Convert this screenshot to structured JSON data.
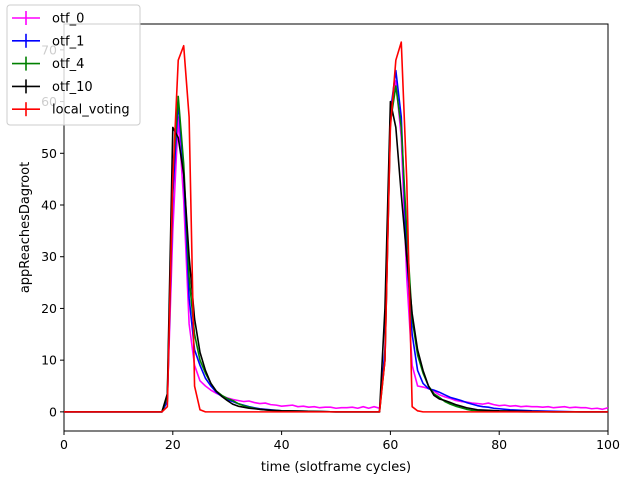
{
  "chart_data": {
    "type": "line",
    "xlabel": "time (slotframe cycles)",
    "ylabel": "appReachesDagroot",
    "xlim": [
      0,
      100
    ],
    "ylim": [
      -3.7,
      75
    ],
    "xticks": [
      0,
      20,
      40,
      60,
      80,
      100
    ],
    "yticks": [
      0,
      10,
      20,
      30,
      40,
      50,
      60,
      70
    ],
    "legend_position": "top-left",
    "series": [
      {
        "name": "otf_0",
        "color": "#ff00ff",
        "points": [
          [
            0,
            0
          ],
          [
            5,
            0
          ],
          [
            10,
            0
          ],
          [
            15,
            0
          ],
          [
            18,
            0
          ],
          [
            19,
            2.5
          ],
          [
            20,
            35
          ],
          [
            21,
            57
          ],
          [
            22,
            41
          ],
          [
            23,
            17
          ],
          [
            24,
            9
          ],
          [
            25,
            6
          ],
          [
            26,
            5
          ],
          [
            27,
            4.2
          ],
          [
            28,
            3.6
          ],
          [
            29,
            3.1
          ],
          [
            30,
            2.7
          ],
          [
            31,
            2.4
          ],
          [
            32,
            2.2
          ],
          [
            33,
            2
          ],
          [
            34,
            2.1
          ],
          [
            35,
            1.8
          ],
          [
            36,
            1.6
          ],
          [
            37,
            1.7
          ],
          [
            38,
            1.4
          ],
          [
            39,
            1.3
          ],
          [
            40,
            1.1
          ],
          [
            41,
            1.2
          ],
          [
            42,
            1.3
          ],
          [
            43,
            1
          ],
          [
            44,
            1.1
          ],
          [
            45,
            0.9
          ],
          [
            46,
            1
          ],
          [
            47,
            0.8
          ],
          [
            48,
            0.9
          ],
          [
            49,
            0.9
          ],
          [
            50,
            0.7
          ],
          [
            51,
            0.8
          ],
          [
            52,
            0.8
          ],
          [
            53,
            0.9
          ],
          [
            54,
            0.7
          ],
          [
            55,
            1
          ],
          [
            56,
            0.7
          ],
          [
            57,
            1
          ],
          [
            58,
            0.7
          ],
          [
            59,
            10
          ],
          [
            60,
            56
          ],
          [
            61,
            64
          ],
          [
            62,
            53
          ],
          [
            63,
            26
          ],
          [
            64,
            9
          ],
          [
            65,
            5
          ],
          [
            66,
            4.8
          ],
          [
            67,
            4.5
          ],
          [
            68,
            4
          ],
          [
            69,
            3.3
          ],
          [
            70,
            2.9
          ],
          [
            71,
            2.6
          ],
          [
            72,
            2.2
          ],
          [
            73,
            2
          ],
          [
            74,
            1.9
          ],
          [
            75,
            1.7
          ],
          [
            76,
            1.6
          ],
          [
            77,
            1.5
          ],
          [
            78,
            1.7
          ],
          [
            79,
            1.4
          ],
          [
            80,
            1.2
          ],
          [
            81,
            1.3
          ],
          [
            82,
            1.1
          ],
          [
            83,
            1.2
          ],
          [
            84,
            1
          ],
          [
            85,
            1.1
          ],
          [
            86,
            1
          ],
          [
            87,
            1
          ],
          [
            88,
            0.9
          ],
          [
            89,
            1
          ],
          [
            90,
            0.8
          ],
          [
            91,
            0.9
          ],
          [
            92,
            1
          ],
          [
            93,
            0.8
          ],
          [
            94,
            0.9
          ],
          [
            95,
            0.8
          ],
          [
            96,
            0.8
          ],
          [
            97,
            0.6
          ],
          [
            98,
            0.7
          ],
          [
            99,
            0.5
          ],
          [
            100,
            0.8
          ]
        ]
      },
      {
        "name": "otf_1",
        "color": "#0000ff",
        "points": [
          [
            0,
            0
          ],
          [
            5,
            0
          ],
          [
            10,
            0
          ],
          [
            15,
            0
          ],
          [
            18,
            0
          ],
          [
            19,
            2
          ],
          [
            20,
            42
          ],
          [
            21,
            60
          ],
          [
            22,
            46
          ],
          [
            23,
            22
          ],
          [
            24,
            12
          ],
          [
            25,
            9
          ],
          [
            26,
            6.5
          ],
          [
            27,
            5
          ],
          [
            28,
            3.8
          ],
          [
            29,
            3
          ],
          [
            30,
            2.4
          ],
          [
            31,
            2
          ],
          [
            32,
            1.6
          ],
          [
            33,
            1.3
          ],
          [
            34,
            1
          ],
          [
            35,
            0.8
          ],
          [
            36,
            0.6
          ],
          [
            37,
            0.5
          ],
          [
            38,
            0.4
          ],
          [
            39,
            0.3
          ],
          [
            40,
            0.2
          ],
          [
            45,
            0.1
          ],
          [
            50,
            0
          ],
          [
            55,
            0
          ],
          [
            58,
            0
          ],
          [
            59,
            12
          ],
          [
            60,
            58
          ],
          [
            61,
            66
          ],
          [
            62,
            57
          ],
          [
            63,
            30
          ],
          [
            64,
            15
          ],
          [
            65,
            8
          ],
          [
            66,
            5.5
          ],
          [
            67,
            4.5
          ],
          [
            68,
            4.2
          ],
          [
            69,
            3.8
          ],
          [
            70,
            3.3
          ],
          [
            71,
            2.8
          ],
          [
            72,
            2.5
          ],
          [
            73,
            2.2
          ],
          [
            74,
            1.8
          ],
          [
            75,
            1.5
          ],
          [
            76,
            1.2
          ],
          [
            77,
            1
          ],
          [
            78,
            0.9
          ],
          [
            79,
            0.7
          ],
          [
            80,
            0.6
          ],
          [
            82,
            0.4
          ],
          [
            84,
            0.3
          ],
          [
            86,
            0.2
          ],
          [
            90,
            0.1
          ],
          [
            95,
            0
          ],
          [
            100,
            0
          ]
        ]
      },
      {
        "name": "otf_4",
        "color": "#008000",
        "points": [
          [
            0,
            0
          ],
          [
            5,
            0
          ],
          [
            10,
            0
          ],
          [
            15,
            0
          ],
          [
            18,
            0
          ],
          [
            19,
            3
          ],
          [
            20,
            46
          ],
          [
            21,
            61
          ],
          [
            22,
            48
          ],
          [
            23,
            26
          ],
          [
            24,
            15
          ],
          [
            25,
            10
          ],
          [
            26,
            7.5
          ],
          [
            27,
            5.5
          ],
          [
            28,
            4
          ],
          [
            29,
            3.2
          ],
          [
            30,
            2.6
          ],
          [
            31,
            2.2
          ],
          [
            32,
            1.6
          ],
          [
            33,
            1.2
          ],
          [
            34,
            0.9
          ],
          [
            35,
            0.7
          ],
          [
            36,
            0.5
          ],
          [
            37,
            0.4
          ],
          [
            38,
            0.3
          ],
          [
            40,
            0.2
          ],
          [
            45,
            0.1
          ],
          [
            50,
            0
          ],
          [
            55,
            0
          ],
          [
            58,
            0
          ],
          [
            59,
            10
          ],
          [
            60,
            56
          ],
          [
            61,
            63
          ],
          [
            62,
            55
          ],
          [
            63,
            35
          ],
          [
            64,
            18
          ],
          [
            65,
            11
          ],
          [
            66,
            7.5
          ],
          [
            67,
            5
          ],
          [
            68,
            3.5
          ],
          [
            69,
            2.8
          ],
          [
            70,
            2
          ],
          [
            71,
            1.5
          ],
          [
            72,
            1.1
          ],
          [
            73,
            0.8
          ],
          [
            74,
            0.5
          ],
          [
            75,
            0.3
          ],
          [
            77,
            0.2
          ],
          [
            80,
            0.1
          ],
          [
            85,
            0
          ],
          [
            90,
            0
          ],
          [
            100,
            0
          ]
        ]
      },
      {
        "name": "otf_10",
        "color": "#000000",
        "points": [
          [
            0,
            0
          ],
          [
            5,
            0
          ],
          [
            10,
            0
          ],
          [
            15,
            0
          ],
          [
            18,
            0
          ],
          [
            19,
            3.5
          ],
          [
            20,
            55
          ],
          [
            21,
            53
          ],
          [
            22,
            46
          ],
          [
            23,
            30
          ],
          [
            24,
            18
          ],
          [
            25,
            11.5
          ],
          [
            26,
            8
          ],
          [
            27,
            5.5
          ],
          [
            28,
            4
          ],
          [
            29,
            3
          ],
          [
            30,
            2.2
          ],
          [
            31,
            1.5
          ],
          [
            32,
            1.1
          ],
          [
            33,
            0.9
          ],
          [
            34,
            0.7
          ],
          [
            35,
            0.6
          ],
          [
            36,
            0.5
          ],
          [
            37,
            0.4
          ],
          [
            38,
            0.3
          ],
          [
            40,
            0.2
          ],
          [
            45,
            0.1
          ],
          [
            50,
            0
          ],
          [
            55,
            0
          ],
          [
            58,
            0
          ],
          [
            59,
            20
          ],
          [
            60,
            60
          ],
          [
            61,
            55
          ],
          [
            62,
            42
          ],
          [
            63,
            30
          ],
          [
            64,
            19
          ],
          [
            65,
            12
          ],
          [
            66,
            8
          ],
          [
            67,
            5
          ],
          [
            68,
            3.2
          ],
          [
            69,
            2.5
          ],
          [
            70,
            2.2
          ],
          [
            71,
            1.8
          ],
          [
            72,
            1.4
          ],
          [
            73,
            1.1
          ],
          [
            74,
            0.8
          ],
          [
            75,
            0.6
          ],
          [
            76,
            0.4
          ],
          [
            78,
            0.3
          ],
          [
            80,
            0.2
          ],
          [
            85,
            0.1
          ],
          [
            90,
            0
          ],
          [
            100,
            0
          ]
        ]
      },
      {
        "name": "local_voting",
        "color": "#ff0000",
        "points": [
          [
            0,
            0
          ],
          [
            5,
            0
          ],
          [
            10,
            0
          ],
          [
            15,
            0
          ],
          [
            18,
            0
          ],
          [
            19,
            1
          ],
          [
            20,
            45
          ],
          [
            21,
            68
          ],
          [
            22,
            70.8
          ],
          [
            23,
            57
          ],
          [
            24,
            5
          ],
          [
            25,
            0.4
          ],
          [
            26,
            0
          ],
          [
            30,
            0
          ],
          [
            40,
            0
          ],
          [
            50,
            0
          ],
          [
            58,
            0
          ],
          [
            59,
            10
          ],
          [
            60,
            55
          ],
          [
            61,
            68
          ],
          [
            62,
            71.5
          ],
          [
            63,
            45
          ],
          [
            64,
            1
          ],
          [
            65,
            0.2
          ],
          [
            66,
            0
          ],
          [
            70,
            0
          ],
          [
            80,
            0
          ],
          [
            90,
            0
          ],
          [
            100,
            0
          ]
        ]
      }
    ]
  }
}
